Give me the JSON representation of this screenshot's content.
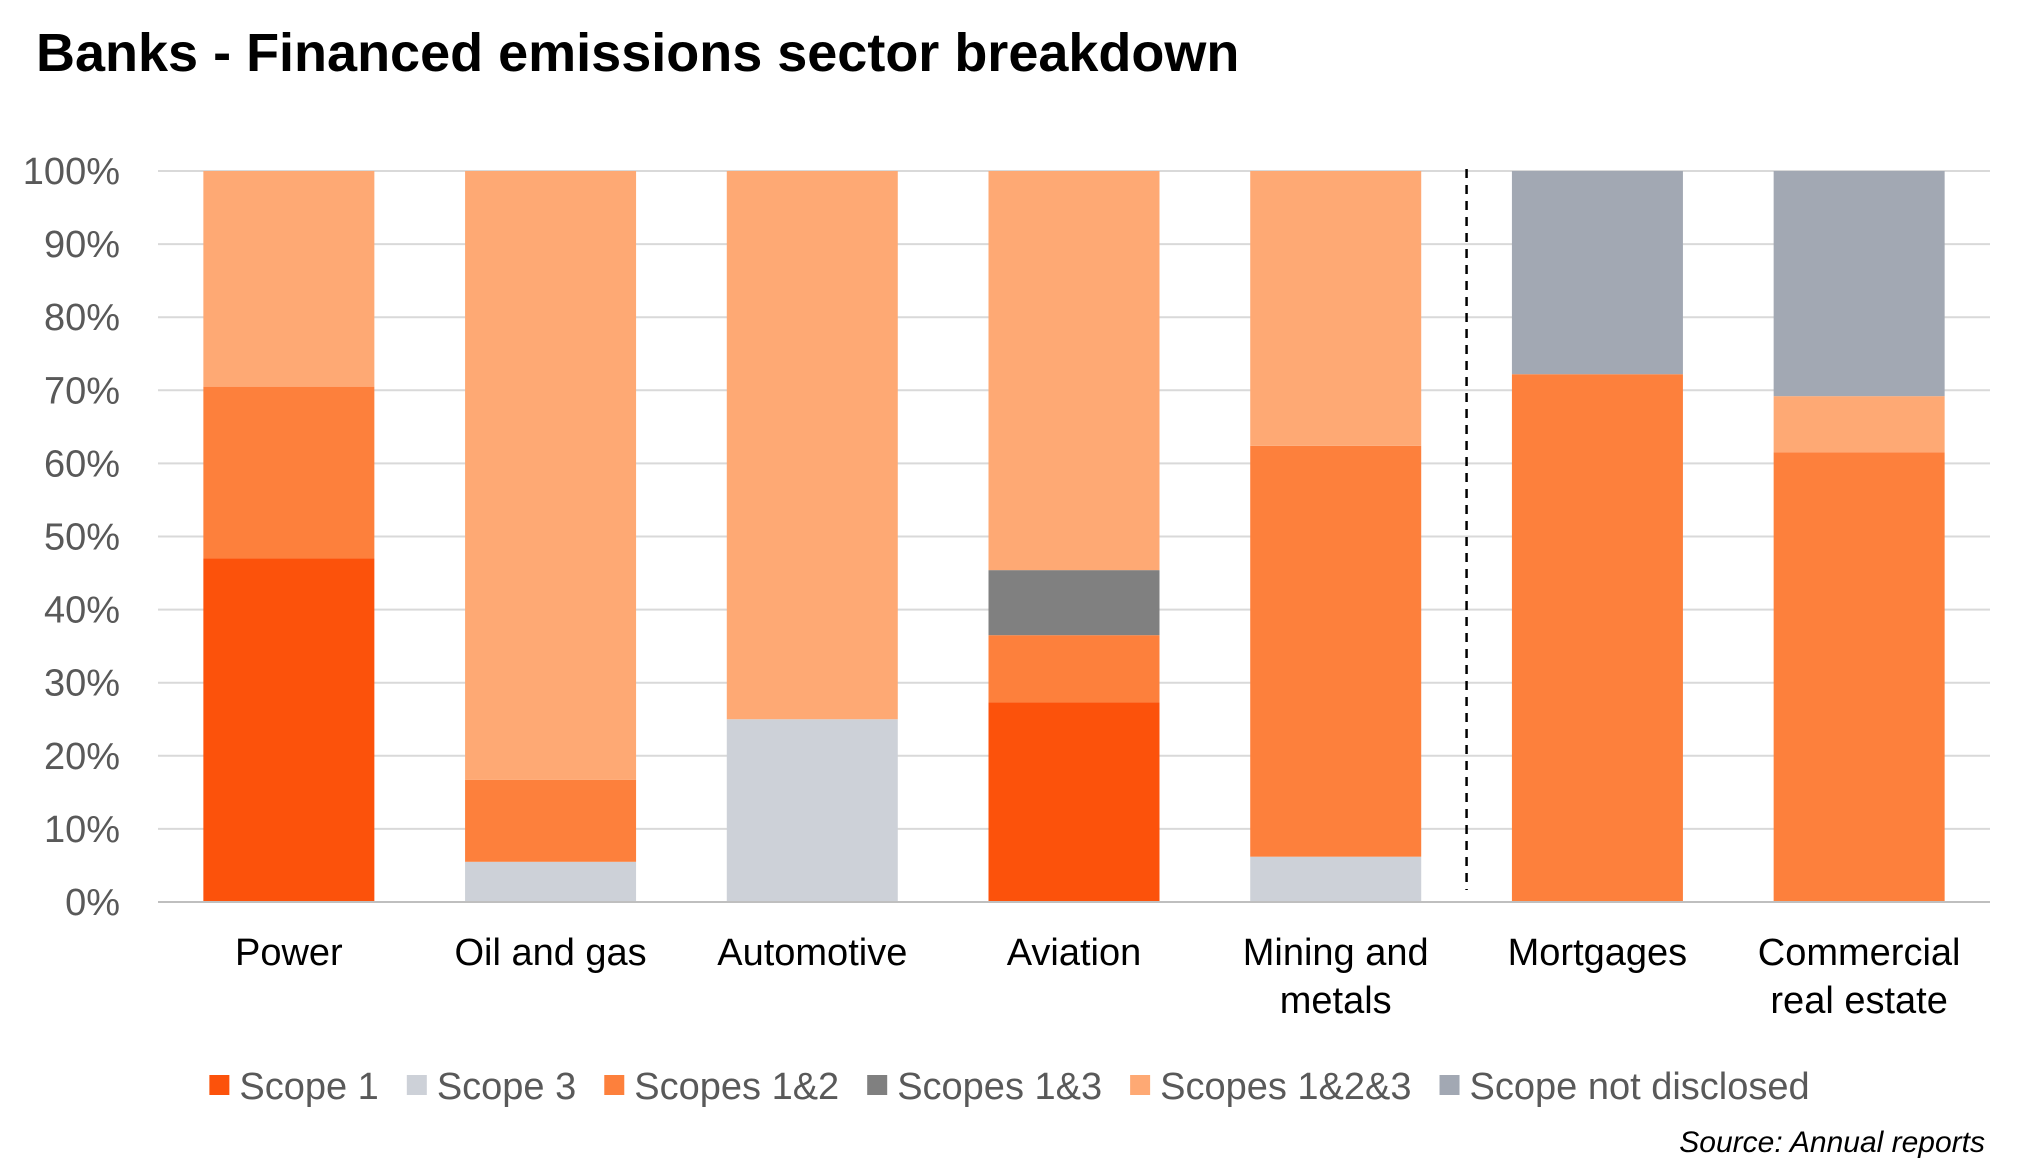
{
  "title": "Banks - Financed emissions sector breakdown",
  "source": "Source: Annual reports",
  "chart_data": {
    "type": "bar",
    "stacked": true,
    "title": "Banks - Financed emissions sector breakdown",
    "xlabel": "",
    "ylabel": "",
    "ylim": [
      0,
      100
    ],
    "y_ticks": [
      "0%",
      "10%",
      "20%",
      "30%",
      "40%",
      "50%",
      "60%",
      "70%",
      "80%",
      "90%",
      "100%"
    ],
    "grid": true,
    "legend_position": "bottom",
    "categories": [
      [
        "Power"
      ],
      [
        "Oil and gas"
      ],
      [
        "Automotive"
      ],
      [
        "Aviation"
      ],
      [
        "Mining and",
        "metals"
      ],
      [
        "Mortgages"
      ],
      [
        "Commercial",
        "real estate"
      ]
    ],
    "series": [
      {
        "name": "Scope 1",
        "color": "#FC520B",
        "values": [
          47,
          0,
          0,
          27.3,
          0,
          0,
          0
        ]
      },
      {
        "name": "Scope 3",
        "color": "#CDD1D8",
        "values": [
          0,
          5.5,
          25,
          0,
          6.2,
          0,
          0
        ]
      },
      {
        "name": "Scopes 1&2",
        "color": "#FD803C",
        "values": [
          23.5,
          11.2,
          0,
          9.2,
          56.2,
          72.2,
          61.5
        ]
      },
      {
        "name": "Scopes 1&3",
        "color": "#808080",
        "values": [
          0,
          0,
          0,
          8.9,
          0,
          0,
          0
        ]
      },
      {
        "name": "Scopes 1&2&3",
        "color": "#FEA974",
        "values": [
          29.5,
          83.3,
          75,
          54.6,
          37.6,
          0,
          7.7
        ]
      },
      {
        "name": "Scope not disclosed",
        "color": "#A2A8B3",
        "values": [
          0,
          0,
          0,
          0,
          0,
          27.8,
          30.8
        ]
      }
    ],
    "separator_after_category_index": 4
  }
}
